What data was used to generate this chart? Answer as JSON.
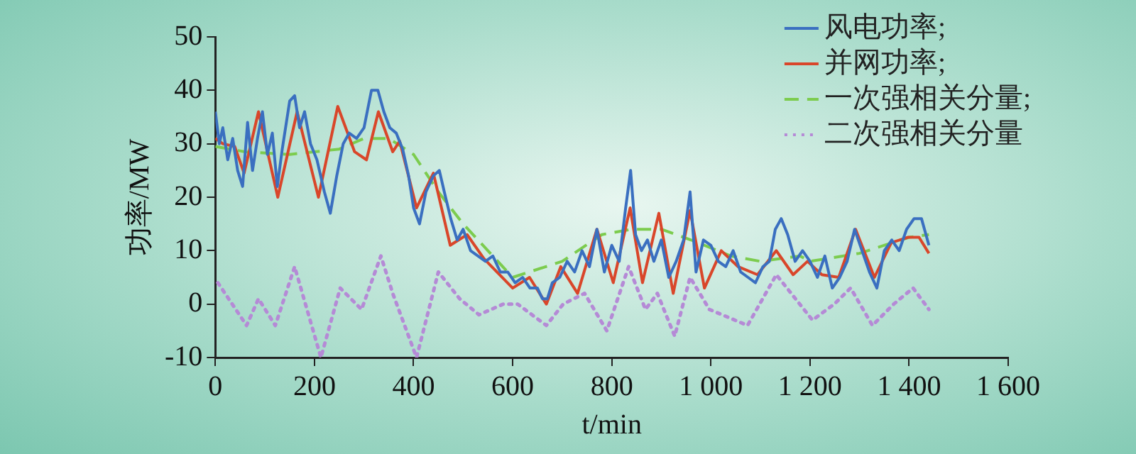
{
  "chart_data": {
    "type": "line",
    "xlabel": "t/min",
    "ylabel": "功率/MW",
    "xlim": [
      0,
      1600
    ],
    "ylim": [
      -10,
      50
    ],
    "xticks": [
      0,
      200,
      400,
      600,
      800,
      {
        "value": 1000,
        "label": "1 000"
      },
      {
        "value": 1200,
        "label": "1 200"
      },
      {
        "value": 1400,
        "label": "1 400"
      },
      {
        "value": 1600,
        "label": "1 600"
      }
    ],
    "yticks": [
      -10,
      0,
      10,
      20,
      30,
      40,
      50
    ],
    "grid": false,
    "legend": "top right",
    "marker": "none",
    "series": [
      {
        "name": "风电功率;",
        "color": "#3a6fc0",
        "line_style": "solid",
        "x": [
          0,
          8,
          15,
          25,
          35,
          45,
          55,
          65,
          75,
          85,
          95,
          105,
          115,
          125,
          135,
          150,
          160,
          170,
          180,
          192,
          205,
          220,
          232,
          245,
          258,
          270,
          285,
          300,
          315,
          328,
          340,
          352,
          365,
          378,
          390,
          400,
          412,
          425,
          440,
          452,
          462,
          475,
          488,
          500,
          515,
          530,
          545,
          560,
          575,
          590,
          605,
          620,
          635,
          650,
          660,
          670,
          680,
          695,
          710,
          725,
          740,
          755,
          770,
          785,
          800,
          815,
          828,
          838,
          848,
          860,
          872,
          885,
          900,
          915,
          930,
          945,
          958,
          970,
          985,
          1000,
          1015,
          1030,
          1045,
          1060,
          1075,
          1090,
          1105,
          1118,
          1130,
          1142,
          1155,
          1170,
          1185,
          1200,
          1215,
          1230,
          1245,
          1260,
          1275,
          1290,
          1305,
          1320,
          1335,
          1350,
          1365,
          1380,
          1395,
          1410,
          1425,
          1440
        ],
        "values": [
          36,
          30,
          33,
          27,
          31,
          25,
          22,
          34,
          25,
          31,
          36,
          28,
          32,
          22,
          29,
          38,
          39,
          33,
          36,
          30,
          27,
          21,
          17,
          24,
          30,
          32,
          31,
          33,
          40,
          40,
          36,
          33,
          32,
          29,
          24,
          18,
          15,
          21,
          24,
          25,
          21,
          16,
          12,
          14,
          10,
          9,
          8,
          9,
          6,
          6,
          4,
          5,
          3,
          3,
          1,
          1,
          4,
          5,
          8,
          6,
          10,
          7,
          14,
          6,
          11,
          8,
          18,
          25,
          13,
          10,
          12,
          8,
          12,
          5,
          8,
          12,
          21,
          6,
          12,
          11,
          8,
          7,
          10,
          6,
          5,
          4,
          7,
          8,
          14,
          16,
          13,
          8,
          10,
          8,
          5,
          9,
          3,
          5,
          8,
          14,
          10,
          6,
          3,
          10,
          12,
          10,
          14,
          16,
          16,
          11
        ]
      },
      {
        "name": "并网功率;",
        "color": "#d9462a",
        "line_style": "solid",
        "x": [
          0,
          15,
          39,
          58,
          87,
          126,
          165,
          208,
          247,
          281,
          305,
          329,
          358,
          372,
          406,
          440,
          474,
          508,
          542,
          600,
          634,
          668,
          697,
          731,
          770,
          803,
          837,
          862,
          895,
          924,
          958,
          987,
          1021,
          1055,
          1094,
          1132,
          1166,
          1195,
          1224,
          1258,
          1292,
          1330,
          1364,
          1398,
          1420,
          1440
        ],
        "values": [
          31,
          30,
          29.5,
          24.5,
          36,
          20,
          36,
          20,
          37,
          28.5,
          27,
          36,
          28.5,
          30.5,
          18,
          24.5,
          11,
          13,
          8.5,
          3,
          5,
          0,
          7,
          2,
          14,
          4,
          18,
          4,
          17,
          2,
          17.5,
          3,
          10,
          7,
          5.5,
          10,
          5.5,
          8,
          5.5,
          5,
          14,
          5,
          11.5,
          12.5,
          12.5,
          9.5
        ]
      },
      {
        "name": "一次强相关分量;",
        "color": "#7ccc4e",
        "line_style": "dashed",
        "x": [
          0,
          60,
          150,
          250,
          300,
          350,
          400,
          450,
          500,
          550,
          600,
          700,
          780,
          840,
          900,
          960,
          1040,
          1100,
          1180,
          1200,
          1300,
          1400,
          1440
        ],
        "values": [
          29.5,
          28.5,
          28,
          29,
          31,
          31,
          28,
          21,
          15,
          10,
          5,
          8,
          13,
          14,
          14,
          12,
          9,
          8,
          9,
          8,
          9.5,
          12.5,
          13
        ]
      },
      {
        "name": "二次强相关分量",
        "color": "#b58ad6",
        "line_style": "dotted",
        "x": [
          5,
          63,
          87,
          121,
          160,
          213,
          252,
          295,
          334,
          358,
          406,
          450,
          493,
          532,
          581,
          610,
          668,
          702,
          745,
          790,
          834,
          868,
          892,
          927,
          958,
          997,
          1074,
          1132,
          1205,
          1249,
          1282,
          1326,
          1369,
          1408,
          1440
        ],
        "values": [
          4,
          -4,
          1,
          -4,
          7,
          -10,
          3,
          -1,
          9,
          2,
          -10,
          6,
          1,
          -2,
          0,
          0,
          -4,
          0,
          2,
          -5,
          7,
          -1,
          2,
          -6,
          5,
          -1,
          -4,
          5.5,
          -3,
          0,
          3,
          -4,
          0,
          3,
          -1
        ]
      }
    ]
  }
}
